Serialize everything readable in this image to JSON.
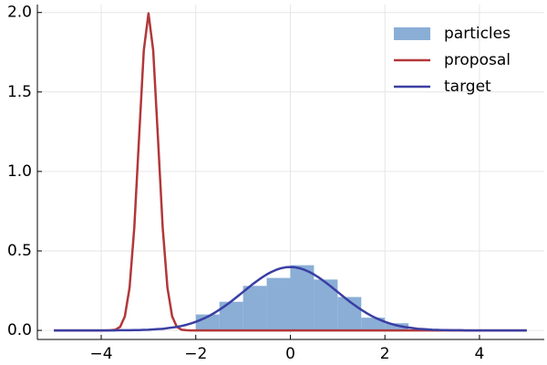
{
  "chart_data": {
    "type": "histogram",
    "hist": {
      "name": "particles",
      "color": "#8aaed6",
      "bins": [
        -2,
        -1.5,
        -1,
        -0.5,
        0,
        0.5,
        1,
        1.5,
        2,
        2.5
      ],
      "values": [
        0.1,
        0.18,
        0.28,
        0.33,
        0.41,
        0.32,
        0.21,
        0.08,
        0.045
      ]
    },
    "x": [
      -5,
      -4.9,
      -4.8,
      -4.7,
      -4.6,
      -4.5,
      -4.4,
      -4.3,
      -4.2,
      -4.1,
      -4,
      -3.9,
      -3.8,
      -3.7,
      -3.6,
      -3.5,
      -3.4,
      -3.3,
      -3.2,
      -3.1,
      -3,
      -2.9,
      -2.8,
      -2.7,
      -2.6,
      -2.5,
      -2.4,
      -2.3,
      -2.2,
      -2.1,
      -2,
      -1.9,
      -1.8,
      -1.7,
      -1.6,
      -1.5,
      -1.4,
      -1.3,
      -1.2,
      -1.1,
      -1,
      -0.9,
      -0.8,
      -0.7,
      -0.6,
      -0.5,
      -0.4,
      -0.3,
      -0.2,
      -0.1,
      0,
      0.1,
      0.2,
      0.3,
      0.4,
      0.5,
      0.6,
      0.7,
      0.8,
      0.9,
      1,
      1.1,
      1.2,
      1.3,
      1.4,
      1.5,
      1.6,
      1.7,
      1.8,
      1.9,
      2,
      2.1,
      2.2,
      2.3,
      2.4,
      2.5,
      2.6,
      2.7,
      2.8,
      2.9,
      3,
      3.1,
      3.2,
      3.3,
      3.4,
      3.5,
      3.6,
      3.7,
      3.8,
      3.9,
      4,
      4.1,
      4.2,
      4.3,
      4.4,
      4.5,
      4.6,
      4.7,
      4.8,
      4.9,
      5
    ],
    "series": [
      {
        "name": "proposal",
        "color": "#b2373a",
        "values": [
          0,
          0,
          0,
          0,
          0,
          0,
          0,
          0,
          0,
          0,
          0,
          0,
          0.001,
          0.004,
          0.022,
          0.088,
          0.27,
          0.648,
          1.21,
          1.76,
          1.995,
          1.76,
          1.21,
          0.648,
          0.27,
          0.088,
          0.022,
          0.004,
          0.001,
          0,
          0,
          0,
          0,
          0,
          0,
          0,
          0,
          0,
          0,
          0,
          0,
          0,
          0,
          0,
          0,
          0,
          0,
          0,
          0,
          0,
          0,
          0,
          0,
          0,
          0,
          0,
          0,
          0,
          0,
          0,
          0,
          0,
          0,
          0,
          0,
          0,
          0,
          0,
          0,
          0,
          0,
          0,
          0,
          0,
          0,
          0,
          0,
          0,
          0,
          0,
          0,
          0,
          0,
          0,
          0,
          0,
          0,
          0,
          0,
          0,
          0,
          0,
          0,
          0,
          0,
          0,
          0,
          0,
          0,
          0,
          0
        ]
      },
      {
        "name": "target",
        "color": "#3a3fa3",
        "values": [
          0,
          0,
          0,
          0,
          0,
          0,
          0,
          0,
          0,
          0,
          0,
          0,
          0,
          0,
          0.001,
          0.001,
          0.001,
          0.002,
          0.002,
          0.003,
          0.004,
          0.006,
          0.008,
          0.01,
          0.014,
          0.018,
          0.022,
          0.028,
          0.035,
          0.044,
          0.054,
          0.066,
          0.079,
          0.094,
          0.111,
          0.13,
          0.15,
          0.171,
          0.194,
          0.218,
          0.242,
          0.266,
          0.29,
          0.312,
          0.333,
          0.352,
          0.368,
          0.381,
          0.391,
          0.397,
          0.399,
          0.397,
          0.391,
          0.381,
          0.368,
          0.352,
          0.333,
          0.312,
          0.29,
          0.266,
          0.242,
          0.218,
          0.194,
          0.171,
          0.15,
          0.13,
          0.111,
          0.094,
          0.079,
          0.066,
          0.054,
          0.044,
          0.035,
          0.028,
          0.022,
          0.018,
          0.014,
          0.01,
          0.008,
          0.006,
          0.004,
          0.003,
          0.002,
          0.002,
          0.001,
          0.001,
          0.001,
          0,
          0,
          0,
          0,
          0,
          0,
          0,
          0,
          0,
          0,
          0,
          0,
          0,
          0
        ]
      }
    ],
    "xlim": [
      -5.35,
      5.37
    ],
    "ylim": [
      -0.057,
      2.05
    ],
    "xticks": [
      {
        "value": -4,
        "label": "−4"
      },
      {
        "value": -2,
        "label": "−2"
      },
      0,
      2,
      4
    ],
    "yticks": [
      {
        "value": 0,
        "label": "0.0"
      },
      0.5,
      {
        "value": 1,
        "label": "1.0"
      },
      1.5,
      {
        "value": 2,
        "label": "2.0"
      }
    ],
    "grid": true,
    "legend": "top-right"
  }
}
